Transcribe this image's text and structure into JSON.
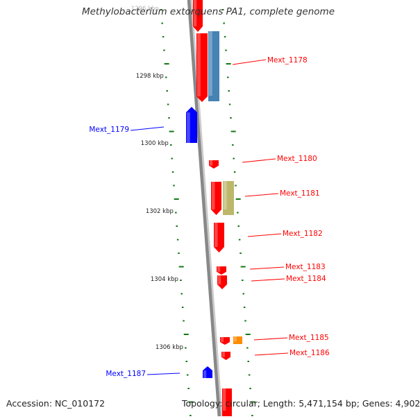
{
  "title": "Methylobacterium extorquens PA1, complete genome",
  "accession_text": "Accession: NC_010172",
  "topology_text": "Topology: circular; Length: 5,471,154 bp; Genes: 4,902",
  "colors": {
    "forward_gene": "#ff0000",
    "reverse_gene": "#0000ff",
    "blue_feature": "#4682b4",
    "khaki_feature": "#bdb76b",
    "orange_feature": "#ff8c00",
    "backbone": "#888888",
    "tick": "#117711"
  },
  "kbp_labels": [
    "1296 kbp",
    "1298 kbp",
    "1300 kbp",
    "1302 kbp",
    "1304 kbp",
    "1306 kbp"
  ],
  "genes": [
    {
      "label": "Mext_1178",
      "strand": "forward"
    },
    {
      "label": "Mext_1179",
      "strand": "reverse"
    },
    {
      "label": "Mext_1180",
      "strand": "forward"
    },
    {
      "label": "Mext_1181",
      "strand": "forward"
    },
    {
      "label": "Mext_1182",
      "strand": "forward"
    },
    {
      "label": "Mext_1183",
      "strand": "forward"
    },
    {
      "label": "Mext_1184",
      "strand": "forward"
    },
    {
      "label": "Mext_1185",
      "strand": "forward"
    },
    {
      "label": "Mext_1186",
      "strand": "forward"
    },
    {
      "label": "Mext_1187",
      "strand": "reverse"
    }
  ]
}
